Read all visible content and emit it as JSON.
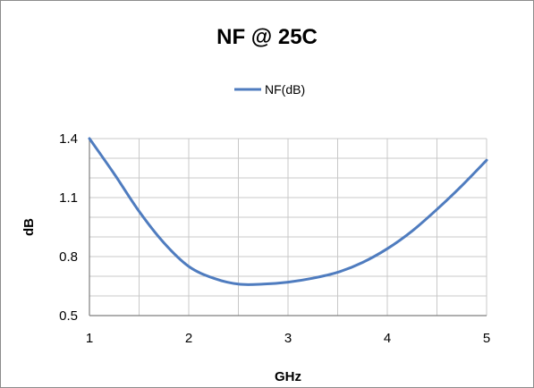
{
  "chart_data": {
    "type": "line",
    "title": "NF @ 25C",
    "xlabel": "GHz",
    "ylabel": "dB",
    "xlim": [
      1,
      5
    ],
    "ylim": [
      0.5,
      1.4
    ],
    "x_ticks": [
      "1",
      "2",
      "3",
      "4",
      "5"
    ],
    "y_ticks": [
      "0.5",
      "0.8",
      "1.1",
      "1.4"
    ],
    "grid": true,
    "legend_position": "top",
    "series": [
      {
        "name": "NF(dB)",
        "color": "#4f7cbf",
        "x": [
          1.0,
          1.25,
          1.5,
          1.75,
          2.0,
          2.25,
          2.5,
          2.75,
          3.0,
          3.25,
          3.5,
          3.75,
          4.0,
          4.25,
          4.5,
          4.75,
          5.0
        ],
        "y": [
          1.4,
          1.22,
          1.03,
          0.87,
          0.75,
          0.69,
          0.66,
          0.66,
          0.67,
          0.69,
          0.72,
          0.77,
          0.84,
          0.93,
          1.04,
          1.16,
          1.29
        ]
      }
    ]
  }
}
